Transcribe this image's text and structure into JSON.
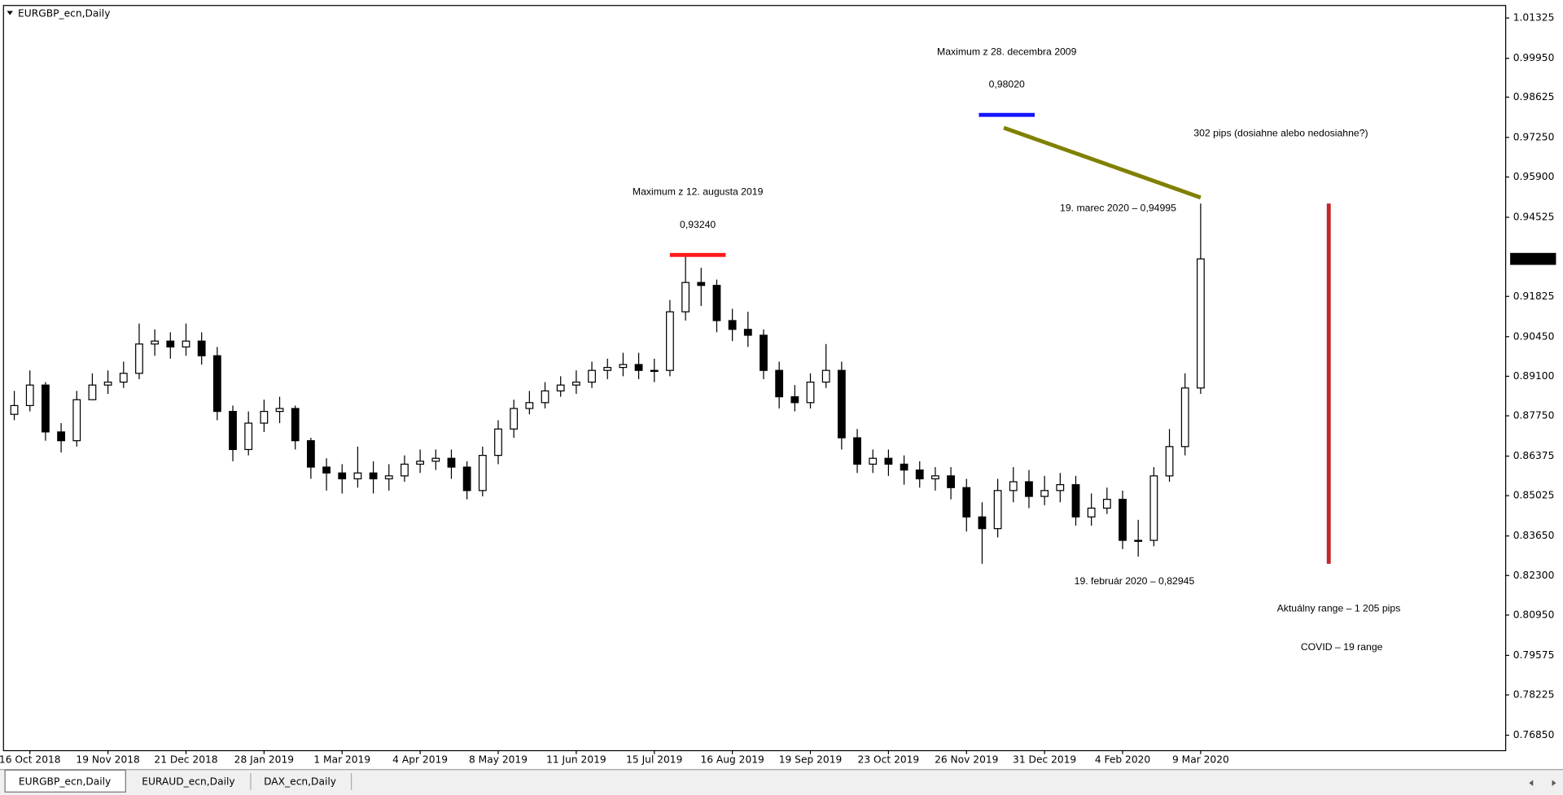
{
  "chart_data": {
    "type": "candlestick",
    "title": "EURGBP_ecn,Daily",
    "categories": [
      null,
      "16 Oct 2018",
      null,
      null,
      null,
      null,
      "19 Nov 2018",
      null,
      null,
      null,
      null,
      "21 Dec 2018",
      null,
      null,
      null,
      null,
      "28 Jan 2019",
      null,
      null,
      null,
      null,
      "1 Mar 2019",
      null,
      null,
      null,
      null,
      "4 Apr 2019",
      null,
      null,
      null,
      null,
      "8 May 2019",
      null,
      null,
      null,
      null,
      "11 Jun 2019",
      null,
      null,
      null,
      null,
      "15 Jul 2019",
      null,
      null,
      null,
      null,
      "16 Aug 2019",
      null,
      null,
      null,
      null,
      "19 Sep 2019",
      null,
      null,
      null,
      null,
      "23 Oct 2019",
      null,
      null,
      null,
      null,
      "26 Nov 2019",
      null,
      null,
      null,
      null,
      "31 Dec 2019",
      null,
      null,
      null,
      null,
      "4 Feb 2020",
      null,
      null,
      null,
      null,
      "9 Mar 2020"
    ],
    "open": [
      0.878,
      0.881,
      0.888,
      0.872,
      0.869,
      0.883,
      0.888,
      0.889,
      0.892,
      0.902,
      0.903,
      0.901,
      0.903,
      0.898,
      0.879,
      0.866,
      0.875,
      0.879,
      0.88,
      0.869,
      0.86,
      0.858,
      0.856,
      0.858,
      0.856,
      0.857,
      0.861,
      0.862,
      0.863,
      0.86,
      0.852,
      0.864,
      0.873,
      0.88,
      0.882,
      0.886,
      0.888,
      0.889,
      0.893,
      0.894,
      0.895,
      0.893,
      0.893,
      0.913,
      0.923,
      0.922,
      0.91,
      0.907,
      0.905,
      0.893,
      0.884,
      0.882,
      0.889,
      0.893,
      0.87,
      0.861,
      0.863,
      0.861,
      0.859,
      0.856,
      0.857,
      0.853,
      0.843,
      0.839,
      0.852,
      0.855,
      0.85,
      0.852,
      0.854,
      0.843,
      0.846,
      0.849,
      0.835,
      0.835,
      0.857,
      0.867,
      0.887
    ],
    "high": [
      0.886,
      0.893,
      0.889,
      0.875,
      0.886,
      0.892,
      0.893,
      0.896,
      0.909,
      0.907,
      0.906,
      0.909,
      0.906,
      0.901,
      0.881,
      0.879,
      0.883,
      0.884,
      0.881,
      0.87,
      0.863,
      0.861,
      0.867,
      0.862,
      0.861,
      0.864,
      0.866,
      0.866,
      0.866,
      0.862,
      0.867,
      0.876,
      0.883,
      0.886,
      0.889,
      0.891,
      0.893,
      0.896,
      0.897,
      0.899,
      0.899,
      0.897,
      0.917,
      0.9324,
      0.928,
      0.924,
      0.914,
      0.913,
      0.907,
      0.896,
      0.888,
      0.892,
      0.902,
      0.896,
      0.873,
      0.866,
      0.866,
      0.864,
      0.862,
      0.86,
      0.86,
      0.856,
      0.848,
      0.856,
      0.86,
      0.859,
      0.857,
      0.858,
      0.857,
      0.851,
      0.853,
      0.852,
      0.842,
      0.86,
      0.873,
      0.892,
      0.94995
    ],
    "low": [
      0.876,
      0.879,
      0.869,
      0.865,
      0.867,
      0.883,
      0.885,
      0.887,
      0.89,
      0.898,
      0.897,
      0.898,
      0.895,
      0.876,
      0.862,
      0.864,
      0.872,
      0.875,
      0.866,
      0.856,
      0.852,
      0.851,
      0.853,
      0.851,
      0.852,
      0.855,
      0.858,
      0.859,
      0.856,
      0.849,
      0.85,
      0.861,
      0.87,
      0.878,
      0.88,
      0.884,
      0.885,
      0.887,
      0.89,
      0.891,
      0.89,
      0.889,
      0.891,
      0.91,
      0.915,
      0.906,
      0.903,
      0.901,
      0.89,
      0.88,
      0.879,
      0.88,
      0.887,
      0.866,
      0.858,
      0.858,
      0.857,
      0.854,
      0.853,
      0.852,
      0.849,
      0.838,
      0.827,
      0.836,
      0.848,
      0.846,
      0.847,
      0.848,
      0.84,
      0.84,
      0.844,
      0.832,
      0.82945,
      0.833,
      0.855,
      0.864,
      0.885
    ],
    "close": [
      0.881,
      0.888,
      0.872,
      0.869,
      0.883,
      0.888,
      0.889,
      0.892,
      0.902,
      0.903,
      0.901,
      0.903,
      0.898,
      0.879,
      0.866,
      0.875,
      0.879,
      0.88,
      0.869,
      0.86,
      0.858,
      0.856,
      0.858,
      0.856,
      0.857,
      0.861,
      0.862,
      0.863,
      0.86,
      0.852,
      0.864,
      0.873,
      0.88,
      0.882,
      0.886,
      0.888,
      0.889,
      0.893,
      0.894,
      0.895,
      0.893,
      0.893,
      0.913,
      0.923,
      0.922,
      0.91,
      0.907,
      0.905,
      0.893,
      0.884,
      0.882,
      0.889,
      0.893,
      0.87,
      0.861,
      0.863,
      0.861,
      0.859,
      0.856,
      0.857,
      0.853,
      0.843,
      0.839,
      0.852,
      0.855,
      0.85,
      0.852,
      0.854,
      0.843,
      0.846,
      0.849,
      0.835,
      0.835,
      0.857,
      0.867,
      0.887,
      0.93105
    ],
    "ylim": [
      0.7634,
      1.0177
    ],
    "yticks": [
      1.01325,
      {
        "value": 0.9995,
        "label": "0.99950"
      },
      0.98625,
      {
        "value": 0.9725,
        "label": "0.97250"
      },
      {
        "value": 0.959,
        "label": "0.95900"
      },
      0.94525,
      0.91825,
      {
        "value": 0.9045,
        "label": "0.90450"
      },
      {
        "value": 0.891,
        "label": "0.89100"
      },
      {
        "value": 0.8775,
        "label": "0.87750"
      },
      0.86375,
      0.85025,
      {
        "value": 0.8365,
        "label": "0.83650"
      },
      {
        "value": 0.823,
        "label": "0.82300"
      },
      {
        "value": 0.8095,
        "label": "0.80950"
      },
      0.79575,
      0.78225,
      {
        "value": 0.7685,
        "label": "0.76850"
      }
    ],
    "current_price": 0.93105,
    "levels": [
      {
        "text": "Maximum z 28. decembra 2009",
        "value": 0.9802,
        "label": "0,98020",
        "color": "#1414ff"
      },
      {
        "text": "Maximum z 12. augusta 2019",
        "value": 0.9324,
        "label": "0,93240",
        "color": "#ff1a1a"
      }
    ],
    "gap_label": "302 pips (dosiahne alebo nedosiahne?)",
    "gap_color": "#808000",
    "high_label": "19. marec 2020  – 0,94995",
    "low_label": "19. február 2020  – 0,82945",
    "range_label": "Aktuálny range – 1 205 pips",
    "range_note": "COVID – 19 range",
    "range_color": "#c0282d"
  },
  "tabs": [
    "EURGBP_ecn,Daily",
    "EURAUD_ecn,Daily",
    "DAX_ecn,Daily"
  ]
}
